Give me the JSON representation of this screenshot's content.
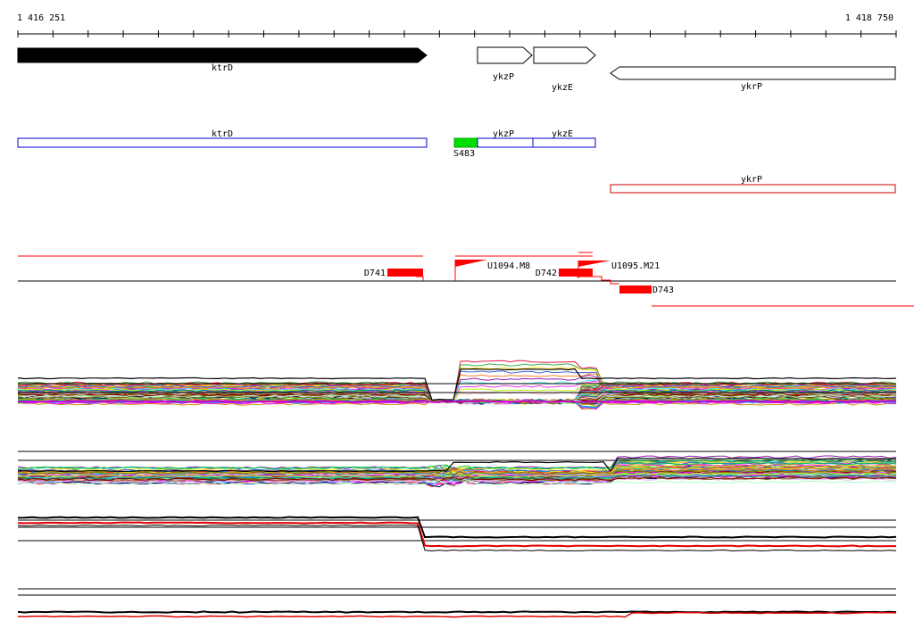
{
  "ruler": {
    "start_label": "1 416 251",
    "end_label": "1 418 750",
    "start_bp": 1416251,
    "end_bp": 1418750
  },
  "genes": [
    {
      "name": "ktrD",
      "strand": "+",
      "style": "filled"
    },
    {
      "name": "ykzP",
      "strand": "+",
      "style": "outline"
    },
    {
      "name": "ykzE",
      "strand": "+",
      "style": "outline"
    },
    {
      "name": "ykrP",
      "strand": "-",
      "style": "outline"
    }
  ],
  "transcripts": [
    {
      "name": "ktrD",
      "color": "#0000cc"
    },
    {
      "name": "ykzP",
      "color": "#0000cc"
    },
    {
      "name": "ykzE",
      "color": "#0000cc"
    },
    {
      "name": "ykrP",
      "color": "#cc0000"
    }
  ],
  "features": {
    "s_site": {
      "label": "S483",
      "color": "#00dd00"
    },
    "down_segments": [
      {
        "label": "D741"
      },
      {
        "label": "D742"
      },
      {
        "label": "D743"
      }
    ],
    "up_segments": [
      {
        "label": "U1094.M8"
      },
      {
        "label": "U1095.M21"
      }
    ]
  },
  "colors": {
    "forward": "#000000",
    "antisense": "#e00000",
    "feature": "#ff0000"
  },
  "series_palette": [
    "#e6194b",
    "#3cb44b",
    "#ffe119",
    "#4363d8",
    "#f58231",
    "#911eb4",
    "#46f0f0",
    "#f032e6",
    "#bcf60c",
    "#fabebe",
    "#008080",
    "#e6beff",
    "#9a6324",
    "#800000",
    "#aaffc3",
    "#808000",
    "#000075",
    "#808080",
    "#ff00ff",
    "#00cc66",
    "#cc9900",
    "#0099ff"
  ]
}
